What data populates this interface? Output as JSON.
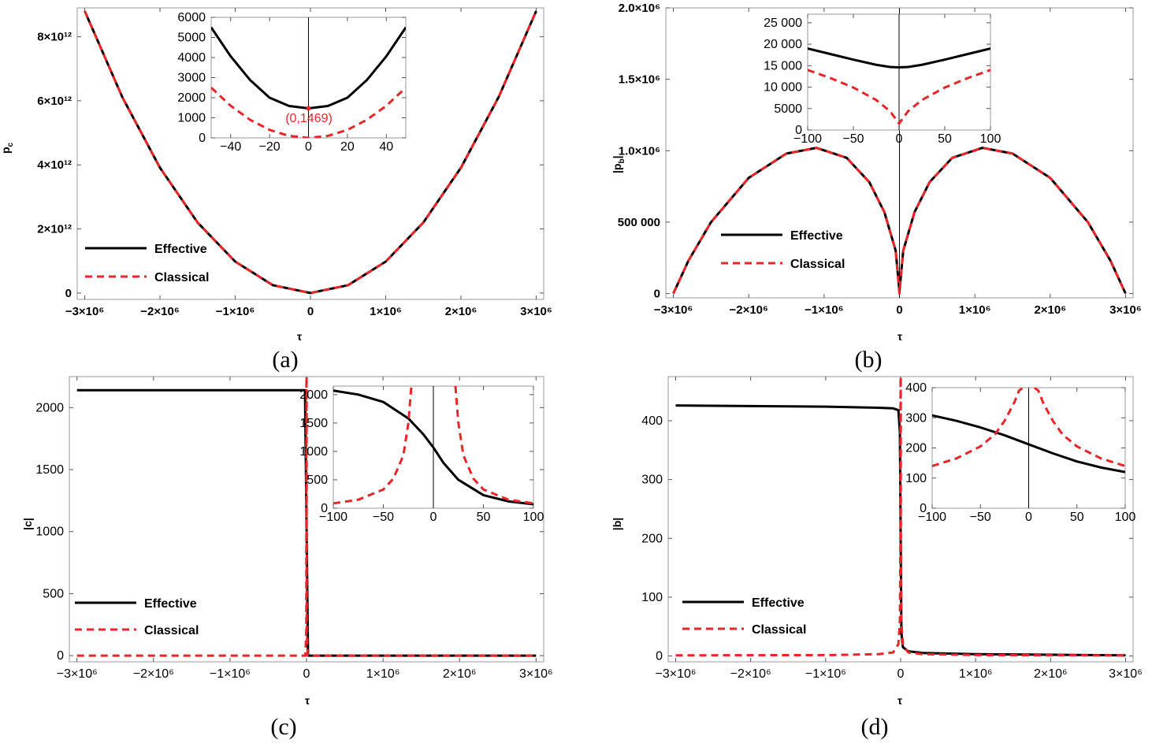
{
  "colors": {
    "effective": "#000000",
    "classical": "#e8262a",
    "frame": "#999999",
    "grid": "#dddddd"
  },
  "chart_data": [
    {
      "panel": "a",
      "type": "line",
      "caption": "(a)",
      "xlabel": "τ",
      "ylabel": "p_c",
      "ylabel_main": "p",
      "ylabel_sub": "c",
      "xlim": [
        -3100000,
        3100000
      ],
      "ylim": [
        -200000000000,
        8900000000000
      ],
      "xticks": [
        -3000000,
        -2000000,
        -1000000,
        0,
        1000000,
        2000000,
        3000000
      ],
      "xtick_labels": [
        "−3×10⁶",
        "−2×10⁶",
        "−1×10⁶",
        "0",
        "1×10⁶",
        "2×10⁶",
        "3×10⁶"
      ],
      "yticks": [
        0,
        2000000000000,
        4000000000000,
        6000000000000,
        8000000000000
      ],
      "ytick_labels": [
        "0",
        "2×10¹²",
        "4×10¹²",
        "6×10¹²",
        "8×10¹²"
      ],
      "legend": [
        "Effective",
        "Classical"
      ],
      "series": [
        {
          "name": "Effective",
          "style": "solid",
          "x": [
            -3000000,
            -2500000,
            -2000000,
            -1500000,
            -1000000,
            -500000,
            0,
            500000,
            1000000,
            1500000,
            2000000,
            2500000,
            3000000
          ],
          "y": [
            8800000000000,
            6110000000000,
            3910000000000,
            2200000000000,
            980000000000,
            244000000000,
            1469,
            244000000000,
            980000000000,
            2200000000000,
            3910000000000,
            6110000000000,
            8800000000000
          ]
        },
        {
          "name": "Classical",
          "style": "dashed",
          "x": [
            -3000000,
            -2500000,
            -2000000,
            -1500000,
            -1000000,
            -500000,
            0,
            500000,
            1000000,
            1500000,
            2000000,
            2500000,
            3000000
          ],
          "y": [
            8800000000000,
            6110000000000,
            3910000000000,
            2200000000000,
            980000000000,
            244000000000,
            0,
            244000000000,
            980000000000,
            2200000000000,
            3910000000000,
            6110000000000,
            8800000000000
          ]
        }
      ],
      "inset": {
        "xlim": [
          -50,
          50
        ],
        "ylim": [
          0,
          6000
        ],
        "xticks": [
          -40,
          -20,
          0,
          20,
          40
        ],
        "xtick_labels": [
          "−40",
          "−20",
          "0",
          "20",
          "40"
        ],
        "yticks": [
          0,
          1000,
          2000,
          3000,
          4000,
          5000,
          6000
        ],
        "ytick_labels": [
          "0",
          "1000",
          "2000",
          "3000",
          "4000",
          "5000",
          "6000"
        ],
        "annotation": "(0,1469)",
        "series": [
          {
            "name": "Effective",
            "style": "solid",
            "x": [
              -50,
              -40,
              -30,
              -20,
              -10,
              0,
              10,
              20,
              30,
              40,
              50
            ],
            "y": [
              5500,
              4060,
              2880,
              2000,
              1590,
              1469,
              1590,
              2000,
              2880,
              4060,
              5500
            ]
          },
          {
            "name": "Classical",
            "style": "dashed",
            "x": [
              -50,
              -40,
              -30,
              -20,
              -10,
              0,
              10,
              20,
              30,
              40,
              50
            ],
            "y": [
              2500,
              1600,
              900,
              400,
              100,
              0,
              100,
              400,
              900,
              1600,
              2500
            ]
          }
        ]
      }
    },
    {
      "panel": "b",
      "type": "line",
      "caption": "(b)",
      "xlabel": "τ",
      "ylabel": "|p_b|",
      "ylabel_main": "|p",
      "ylabel_sub": "b",
      "ylabel_end": "|",
      "xlim": [
        -3100000,
        3100000
      ],
      "ylim": [
        -30000,
        2000000
      ],
      "xticks": [
        -3000000,
        -2000000,
        -1000000,
        0,
        1000000,
        2000000,
        3000000
      ],
      "xtick_labels": [
        "−3×10⁶",
        "−2×10⁶",
        "−1×10⁶",
        "0",
        "1×10⁶",
        "2×10⁶",
        "3×10⁶"
      ],
      "yticks": [
        0,
        500000,
        1000000,
        1500000,
        2000000
      ],
      "ytick_labels": [
        "0",
        "500 000",
        "1.0×10⁶",
        "1.5×10⁶",
        "2.0×10⁶"
      ],
      "legend": [
        "Effective",
        "Classical"
      ],
      "series": [
        {
          "name": "Effective",
          "style": "solid",
          "x": [
            -3000000,
            -2800000,
            -2500000,
            -2000000,
            -1500000,
            -1100000,
            -700000,
            -400000,
            -200000,
            -50000,
            0,
            50000,
            200000,
            400000,
            700000,
            1100000,
            1500000,
            2000000,
            2500000,
            2800000,
            3000000
          ],
          "y": [
            0,
            230000,
            500000,
            810000,
            980000,
            1020000,
            950000,
            780000,
            570000,
            300000,
            15000,
            300000,
            570000,
            780000,
            950000,
            1020000,
            980000,
            810000,
            500000,
            230000,
            0
          ]
        },
        {
          "name": "Classical",
          "style": "dashed",
          "x": [
            -3000000,
            -2800000,
            -2500000,
            -2000000,
            -1500000,
            -1100000,
            -700000,
            -400000,
            -200000,
            -50000,
            0,
            50000,
            200000,
            400000,
            700000,
            1100000,
            1500000,
            2000000,
            2500000,
            2800000,
            3000000
          ],
          "y": [
            0,
            230000,
            500000,
            810000,
            980000,
            1020000,
            950000,
            780000,
            570000,
            300000,
            0,
            300000,
            570000,
            780000,
            950000,
            1020000,
            980000,
            810000,
            500000,
            230000,
            0
          ]
        }
      ],
      "inset": {
        "xlim": [
          -100,
          100
        ],
        "ylim": [
          0,
          27000
        ],
        "xticks": [
          -100,
          -50,
          0,
          50,
          100
        ],
        "xtick_labels": [
          "−100",
          "−50",
          "0",
          "50",
          "100"
        ],
        "yticks": [
          0,
          5000,
          10000,
          15000,
          20000,
          25000
        ],
        "ytick_labels": [
          "0",
          "5000",
          "10 000",
          "15 000",
          "20 000",
          "25 000"
        ],
        "series": [
          {
            "name": "Effective",
            "style": "solid",
            "x": [
              -100,
              -75,
              -50,
              -25,
              -10,
              0,
              10,
              25,
              50,
              75,
              100
            ],
            "y": [
              19000,
              17700,
              16400,
              15200,
              14700,
              14600,
              14700,
              15200,
              16400,
              17700,
              19000
            ]
          },
          {
            "name": "Classical",
            "style": "dashed",
            "x": [
              -100,
              -75,
              -50,
              -25,
              -10,
              -3,
              0,
              3,
              10,
              25,
              50,
              75,
              100
            ],
            "y": [
              14000,
              12100,
              9900,
              7000,
              4400,
              2400,
              1500,
              2400,
              4400,
              7000,
              9900,
              12100,
              14000
            ]
          }
        ]
      }
    },
    {
      "panel": "c",
      "type": "line",
      "caption": "(c)",
      "xlabel": "τ",
      "ylabel": "|c|",
      "ylabel_main": "|c|",
      "xlim": [
        -3100000,
        3100000
      ],
      "ylim": [
        -50,
        2250
      ],
      "xticks": [
        -3000000,
        -2000000,
        -1000000,
        0,
        1000000,
        2000000,
        3000000
      ],
      "xtick_labels": [
        "−3×10⁶",
        "−2×10⁶",
        "−1×10⁶",
        "0",
        "1×10⁶",
        "2×10⁶",
        "3×10⁶"
      ],
      "yticks": [
        0,
        500,
        1000,
        1500,
        2000
      ],
      "ytick_labels": [
        "0",
        "500",
        "1000",
        "1500",
        "2000"
      ],
      "legend": [
        "Effective",
        "Classical"
      ],
      "series": [
        {
          "name": "Effective",
          "style": "solid",
          "x": [
            -3000000,
            -1000000,
            -20000,
            0,
            20000,
            1000000,
            3000000
          ],
          "y": [
            2140,
            2140,
            2140,
            1069,
            0,
            0,
            0
          ]
        },
        {
          "name": "Classical",
          "style": "dashed",
          "x": [
            -3000000,
            -1000000,
            -15000,
            -3000,
            -1000,
            1000,
            3000,
            15000,
            1000000,
            3000000
          ],
          "y": [
            0,
            0,
            0,
            200,
            2250,
            2250,
            200,
            0,
            0,
            0
          ]
        }
      ],
      "inset": {
        "xlim": [
          -100,
          100
        ],
        "ylim": [
          0,
          2150
        ],
        "xticks": [
          -100,
          -50,
          0,
          50,
          100
        ],
        "xtick_labels": [
          "−100",
          "−50",
          "0",
          "50",
          "100"
        ],
        "yticks": [
          0,
          500,
          1000,
          1500,
          2000
        ],
        "ytick_labels": [
          "0",
          "500",
          "1000",
          "1500",
          "2000"
        ],
        "series": [
          {
            "name": "Effective",
            "style": "solid",
            "x": [
              -100,
              -75,
              -50,
              -25,
              -10,
              0,
              10,
              25,
              50,
              75,
              100
            ],
            "y": [
              2070,
              2000,
              1870,
              1580,
              1300,
              1069,
              800,
              500,
              230,
              120,
              70
            ]
          },
          {
            "name": "Classical",
            "style": "dashed",
            "x": [
              -100,
              -75,
              -50,
              -40,
              -30,
              -25,
              -22
            ],
            "y": [
              85,
              150,
              330,
              520,
              930,
              1500,
              2150
            ]
          },
          {
            "name": "Classical",
            "style": "dashed",
            "x": [
              22,
              25,
              30,
              40,
              50,
              75,
              100
            ],
            "y": [
              2150,
              1500,
              930,
              520,
              330,
              150,
              85
            ]
          }
        ]
      }
    },
    {
      "panel": "d",
      "type": "line",
      "caption": "(d)",
      "xlabel": "τ",
      "ylabel": "|b|",
      "ylabel_main": "|b|",
      "xlim": [
        -3100000,
        3100000
      ],
      "ylim": [
        -10,
        475
      ],
      "xticks": [
        -3000000,
        -2000000,
        -1000000,
        0,
        1000000,
        2000000,
        3000000
      ],
      "xtick_labels": [
        "−3×10⁶",
        "−2×10⁶",
        "−1×10⁶",
        "0",
        "1×10⁶",
        "2×10⁶",
        "3×10⁶"
      ],
      "yticks": [
        0,
        100,
        200,
        300,
        400
      ],
      "ytick_labels": [
        "0",
        "100",
        "200",
        "300",
        "400"
      ],
      "legend": [
        "Effective",
        "Classical"
      ],
      "series": [
        {
          "name": "Effective",
          "style": "solid",
          "x": [
            -3000000,
            -2000000,
            -1000000,
            -300000,
            -100000,
            -30000,
            -10000,
            0,
            10000,
            30000,
            100000,
            300000,
            1000000,
            3000000
          ],
          "y": [
            426,
            425,
            424,
            422,
            421,
            418,
            380,
            212,
            40,
            15,
            8,
            5,
            3,
            1
          ]
        },
        {
          "name": "Classical",
          "style": "dashed",
          "x": [
            -3000000,
            -1000000,
            -300000,
            -100000,
            -30000,
            -10000,
            -3000,
            -1000,
            1000,
            3000,
            10000,
            30000,
            100000,
            300000,
            1000000,
            3000000
          ],
          "y": [
            1,
            1.5,
            3,
            6,
            20,
            60,
            200,
            475,
            475,
            200,
            60,
            20,
            6,
            3,
            1.5,
            1
          ]
        }
      ],
      "inset": {
        "xlim": [
          -100,
          100
        ],
        "ylim": [
          0,
          400
        ],
        "xticks": [
          -100,
          -50,
          0,
          50,
          100
        ],
        "xtick_labels": [
          "−100",
          "−50",
          "0",
          "50",
          "100"
        ],
        "yticks": [
          0,
          100,
          200,
          300,
          400
        ],
        "ytick_labels": [
          "0",
          "100",
          "200",
          "300",
          "400"
        ],
        "series": [
          {
            "name": "Effective",
            "style": "solid",
            "x": [
              -100,
              -75,
              -50,
              -25,
              0,
              25,
              50,
              75,
              100
            ],
            "y": [
              308,
              290,
              268,
              242,
              212,
              182,
              155,
              135,
              120
            ]
          },
          {
            "name": "Classical",
            "style": "dashed",
            "x": [
              -100,
              -75,
              -50,
              -35,
              -25,
              -15,
              -10,
              -6
            ],
            "y": [
              140,
              165,
              205,
              245,
              290,
              350,
              390,
              400
            ]
          },
          {
            "name": "Classical",
            "style": "dashed",
            "x": [
              6,
              10,
              15,
              25,
              35,
              50,
              75,
              100
            ],
            "y": [
              400,
              390,
              350,
              290,
              245,
              205,
              165,
              140
            ]
          }
        ]
      }
    }
  ]
}
